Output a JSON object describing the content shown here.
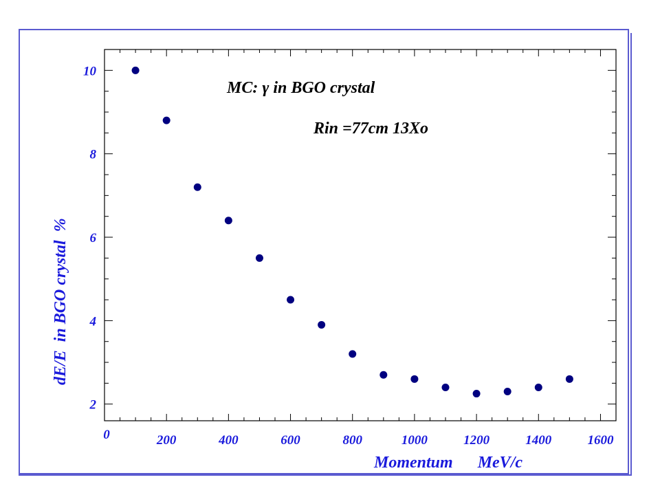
{
  "chart_data": {
    "type": "scatter",
    "xlabel": "Momentum      MeV/c",
    "ylabel": "dE/E  in BGO crystal  %",
    "xlim": [
      0,
      1650
    ],
    "ylim": [
      1.6,
      10.5
    ],
    "xticks": [
      0,
      200,
      400,
      600,
      800,
      1000,
      1200,
      1400,
      1600
    ],
    "yticks": [
      2,
      4,
      6,
      8,
      10
    ],
    "annotations": [
      "MC:   γ in BGO crystal",
      "Rin =77cm  13Xo"
    ],
    "grid": false,
    "colors": {
      "axis": "#000000",
      "labels": "#1a1adc",
      "points": "#000080"
    },
    "series": [
      {
        "x": [
          100,
          200,
          300,
          400,
          500,
          600,
          700,
          800,
          900,
          1000,
          1100,
          1200,
          1300,
          1400,
          1500
        ],
        "y": [
          10.0,
          8.8,
          7.2,
          6.4,
          5.5,
          4.5,
          3.9,
          3.2,
          2.7,
          2.6,
          2.4,
          2.25,
          2.3,
          2.4,
          2.6
        ]
      }
    ]
  }
}
